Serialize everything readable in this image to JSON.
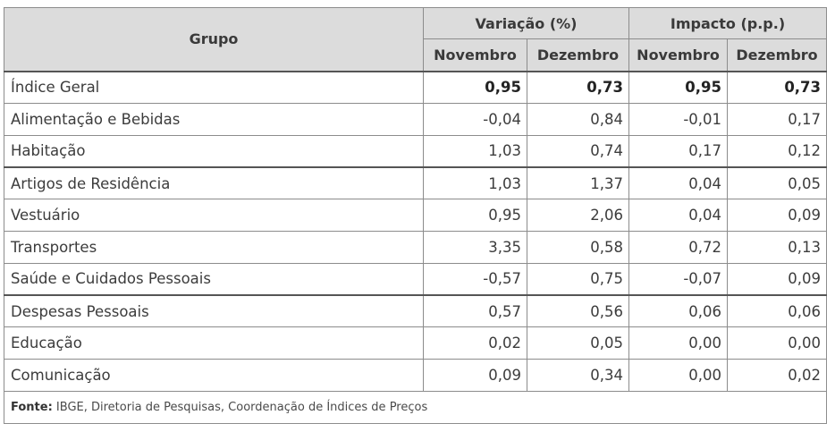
{
  "table": {
    "header": {
      "grupo": "Grupo",
      "variacao": "Variação (%)",
      "impacto": "Impacto (p.p.)",
      "sub": [
        "Novembro",
        "Dezembro",
        "Novembro",
        "Dezembro"
      ]
    },
    "rows": [
      {
        "grupo": "Índice Geral",
        "values": [
          "0,95",
          "0,73",
          "0,95",
          "0,73"
        ]
      },
      {
        "grupo": "Alimentação e Bebidas",
        "values": [
          "-0,04",
          "0,84",
          "-0,01",
          "0,17"
        ]
      },
      {
        "grupo": "Habitação",
        "values": [
          "1,03",
          "0,74",
          "0,17",
          "0,12"
        ]
      },
      {
        "grupo": "Artigos de Residência",
        "values": [
          "1,03",
          "1,37",
          "0,04",
          "0,05"
        ]
      },
      {
        "grupo": "Vestuário",
        "values": [
          "0,95",
          "2,06",
          "0,04",
          "0,09"
        ]
      },
      {
        "grupo": "Transportes",
        "values": [
          "3,35",
          "0,58",
          "0,72",
          "0,13"
        ]
      },
      {
        "grupo": "Saúde e Cuidados Pessoais",
        "values": [
          "-0,57",
          "0,75",
          "-0,07",
          "0,09"
        ]
      },
      {
        "grupo": "Despesas Pessoais",
        "values": [
          "0,57",
          "0,56",
          "0,06",
          "0,06"
        ]
      },
      {
        "grupo": "Educação",
        "values": [
          "0,02",
          "0,05",
          "0,00",
          "0,00"
        ]
      },
      {
        "grupo": "Comunicação",
        "values": [
          "0,09",
          "0,34",
          "0,00",
          "0,02"
        ]
      }
    ],
    "source": {
      "label": "Fonte:",
      "text": " IBGE, Diretoria de Pesquisas, Coordenação de Índices de Preços"
    }
  }
}
